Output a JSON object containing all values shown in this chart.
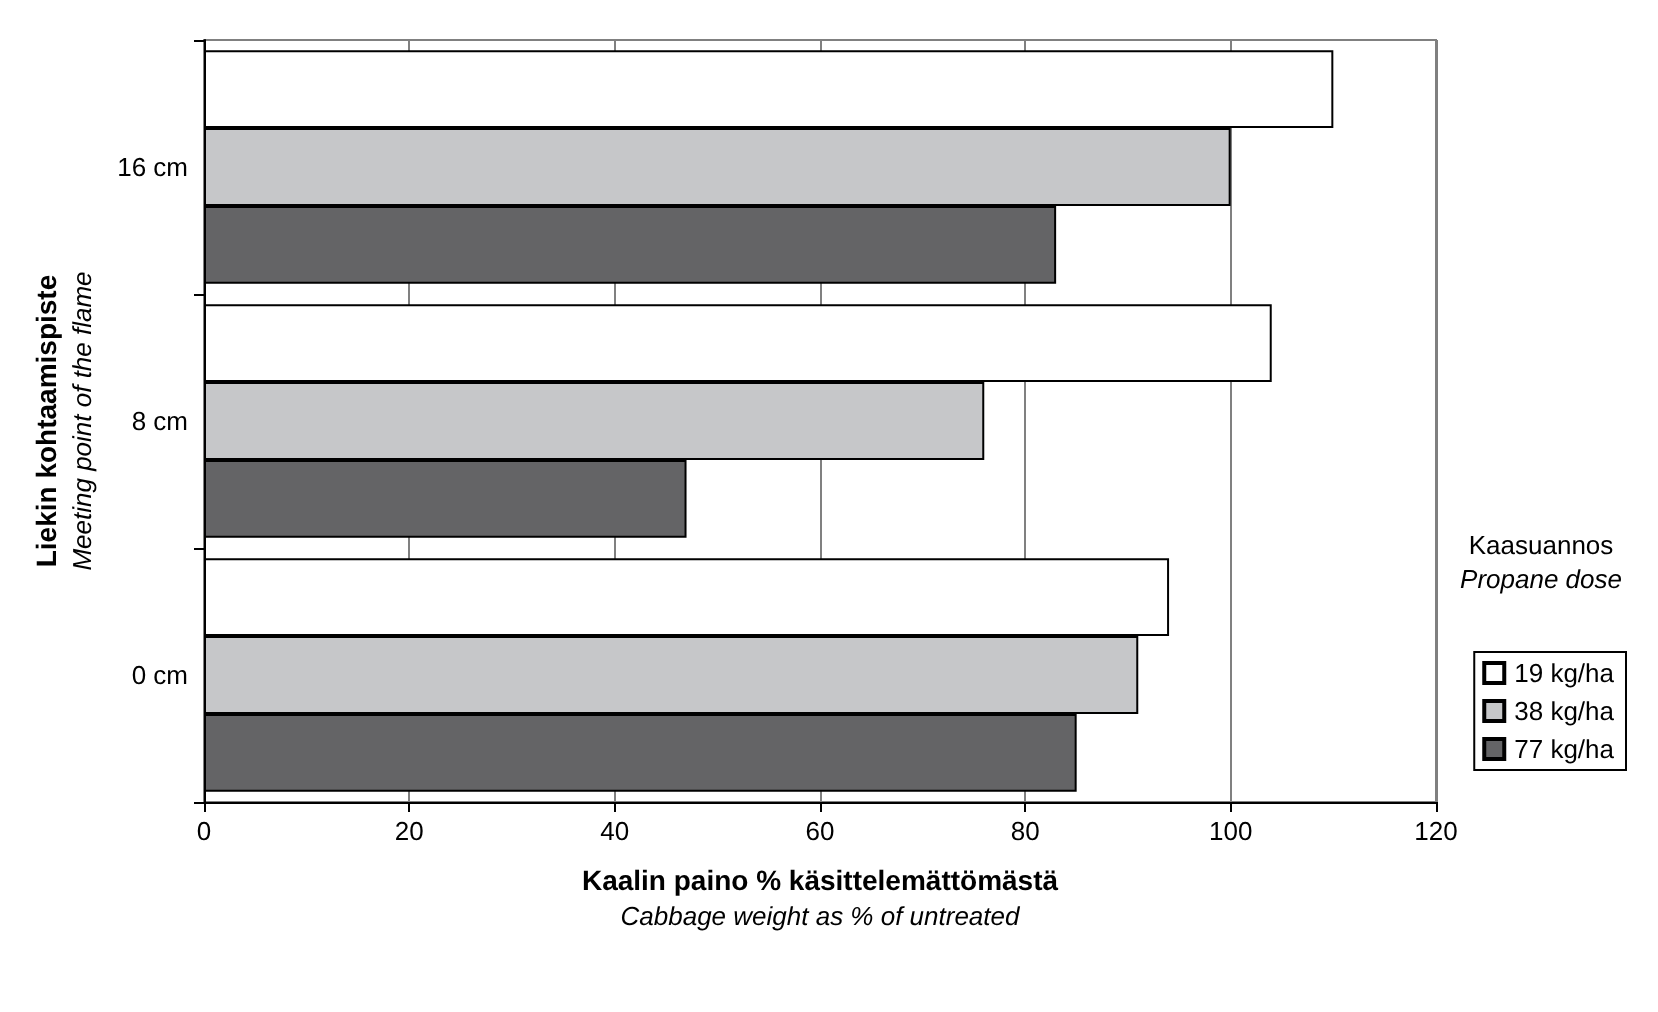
{
  "chart_data": {
    "type": "bar",
    "orientation": "horizontal",
    "xlabel": "Kaalin paino % käsittelemättömästä\nCabbage weight as % of untreated",
    "ylabel": "Liekin kohtaamispiste\nMeeting point of the flame",
    "legend_title": "Kaasuannos\nPropane dose",
    "categories": [
      "16 cm",
      "8 cm",
      "0 cm"
    ],
    "series": [
      {
        "name": "19 kg/ha",
        "color": "#ffffff",
        "values": [
          110,
          104,
          94
        ]
      },
      {
        "name": "38 kg/ha",
        "color": "#c6c7c9",
        "values": [
          100,
          76,
          91
        ]
      },
      {
        "name": "77 kg/ha",
        "color": "#646466",
        "values": [
          83,
          47,
          85
        ]
      }
    ],
    "xlim": [
      0,
      120
    ],
    "xticks": [
      0,
      20,
      40,
      60,
      80,
      100,
      120
    ],
    "grid": "x",
    "legend": "right"
  }
}
